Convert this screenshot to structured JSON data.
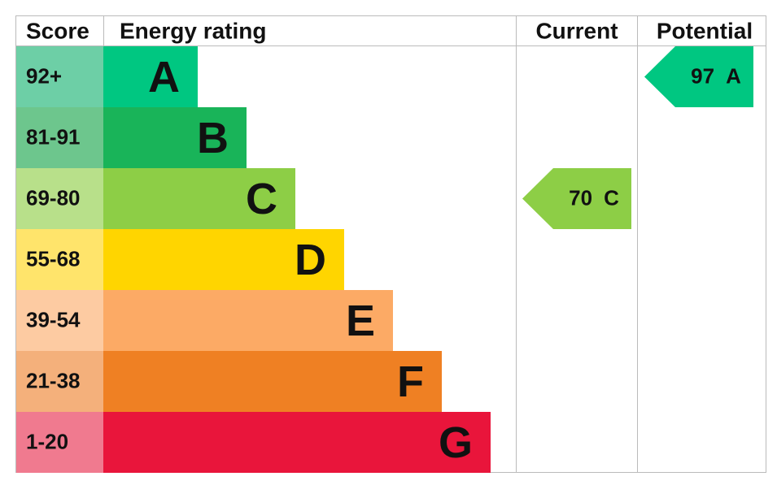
{
  "header": {
    "score": "Score",
    "rating": "Energy rating",
    "current": "Current",
    "potential": "Potential"
  },
  "bands": [
    {
      "score": "92+",
      "letter": "A",
      "color": "#00c781",
      "light": "#6dcfa6"
    },
    {
      "score": "81-91",
      "letter": "B",
      "color": "#19b459",
      "light": "#6dc68d"
    },
    {
      "score": "69-80",
      "letter": "C",
      "color": "#8dce46",
      "light": "#b8e08a"
    },
    {
      "score": "55-68",
      "letter": "D",
      "color": "#ffd500",
      "light": "#ffe46b"
    },
    {
      "score": "39-54",
      "letter": "E",
      "color": "#fcaa65",
      "light": "#fdcba2"
    },
    {
      "score": "21-38",
      "letter": "F",
      "color": "#ef8023",
      "light": "#f4b07b"
    },
    {
      "score": "1-20",
      "letter": "G",
      "color": "#e9153b",
      "light": "#f07a8f"
    }
  ],
  "current": {
    "score": "70",
    "letter": "C"
  },
  "potential": {
    "score": "97",
    "letter": "A"
  }
}
